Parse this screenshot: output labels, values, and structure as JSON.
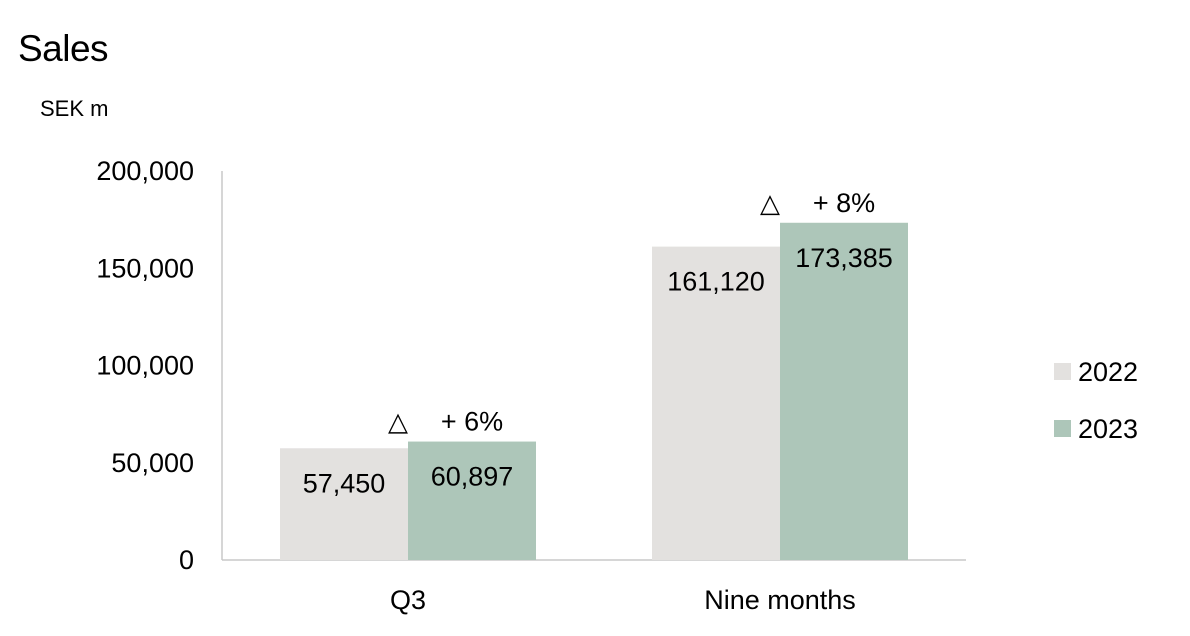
{
  "title": "Sales",
  "unit_label": "SEK m",
  "colors": {
    "2022": "#e3e1df",
    "2023": "#adc6b9",
    "axis": "#c8c8c8"
  },
  "chart_data": {
    "type": "bar",
    "title": "Sales",
    "xlabel": "",
    "ylabel": "SEK m",
    "ylim": [
      0,
      200000
    ],
    "yticks": [
      0,
      50000,
      100000,
      150000,
      200000
    ],
    "ytick_labels": [
      "0",
      "50,000",
      "100,000",
      "150,000",
      "200,000"
    ],
    "categories": [
      "Q3",
      "Nine months"
    ],
    "series": [
      {
        "name": "2022",
        "values": [
          57450,
          161120
        ],
        "labels": [
          "57,450",
          "161,120"
        ]
      },
      {
        "name": "2023",
        "values": [
          60897,
          173385
        ],
        "labels": [
          "60,897",
          "173,385"
        ]
      }
    ],
    "annotations": [
      {
        "category": "Q3",
        "symbol": "△",
        "text": "+ 6%"
      },
      {
        "category": "Nine months",
        "symbol": "△",
        "text": "+ 8%"
      }
    ],
    "legend": "right",
    "grid": false
  }
}
